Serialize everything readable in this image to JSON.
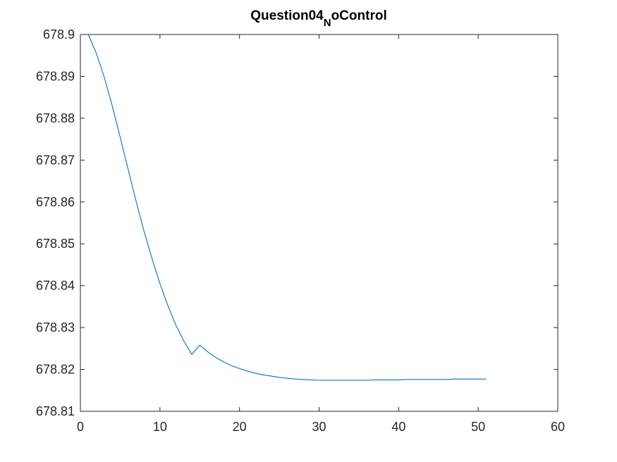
{
  "chart_data": {
    "type": "line",
    "title": "Question04",
    "title_subscript": "N",
    "title_suffix": "oControl",
    "xlabel": "",
    "ylabel": "",
    "xlim": [
      0,
      60
    ],
    "ylim": [
      678.81,
      678.9
    ],
    "x_ticks": [
      "0",
      "10",
      "20",
      "30",
      "40",
      "50",
      "60"
    ],
    "y_ticks": [
      "678.81",
      "678.82",
      "678.83",
      "678.84",
      "678.85",
      "678.86",
      "678.87",
      "678.88",
      "678.89",
      "678.9"
    ],
    "grid": false,
    "legend": "none",
    "series": [
      {
        "color": "#0072BD",
        "x": [
          1,
          2,
          3,
          4,
          5,
          6,
          7,
          8,
          9,
          10,
          11,
          12,
          13,
          14,
          15,
          16,
          17,
          18,
          19,
          20,
          21,
          22,
          23,
          24,
          25,
          26,
          27,
          28,
          29,
          30,
          31,
          32,
          33,
          34,
          35,
          36,
          37,
          38,
          39,
          40,
          41,
          42,
          43,
          44,
          45,
          46,
          47,
          48,
          49,
          50,
          51
        ],
        "values": [
          678.9,
          678.8955,
          678.8898,
          678.883,
          678.8755,
          678.8678,
          678.8602,
          678.853,
          678.8465,
          678.8405,
          678.8352,
          678.8306,
          678.8268,
          678.8236,
          678.8258,
          678.8242,
          678.8229,
          678.8218,
          678.8209,
          678.8202,
          678.8196,
          678.8191,
          678.8187,
          678.8184,
          678.8181,
          678.8179,
          678.8177,
          678.8176,
          678.8175,
          678.8174,
          678.8174,
          678.8174,
          678.8174,
          678.8174,
          678.8174,
          678.8174,
          678.8175,
          678.8175,
          678.8175,
          678.8175,
          678.8176,
          678.8176,
          678.8176,
          678.8176,
          678.8176,
          678.8176,
          678.8177,
          678.8177,
          678.8177,
          678.8177,
          678.8177
        ]
      }
    ]
  }
}
